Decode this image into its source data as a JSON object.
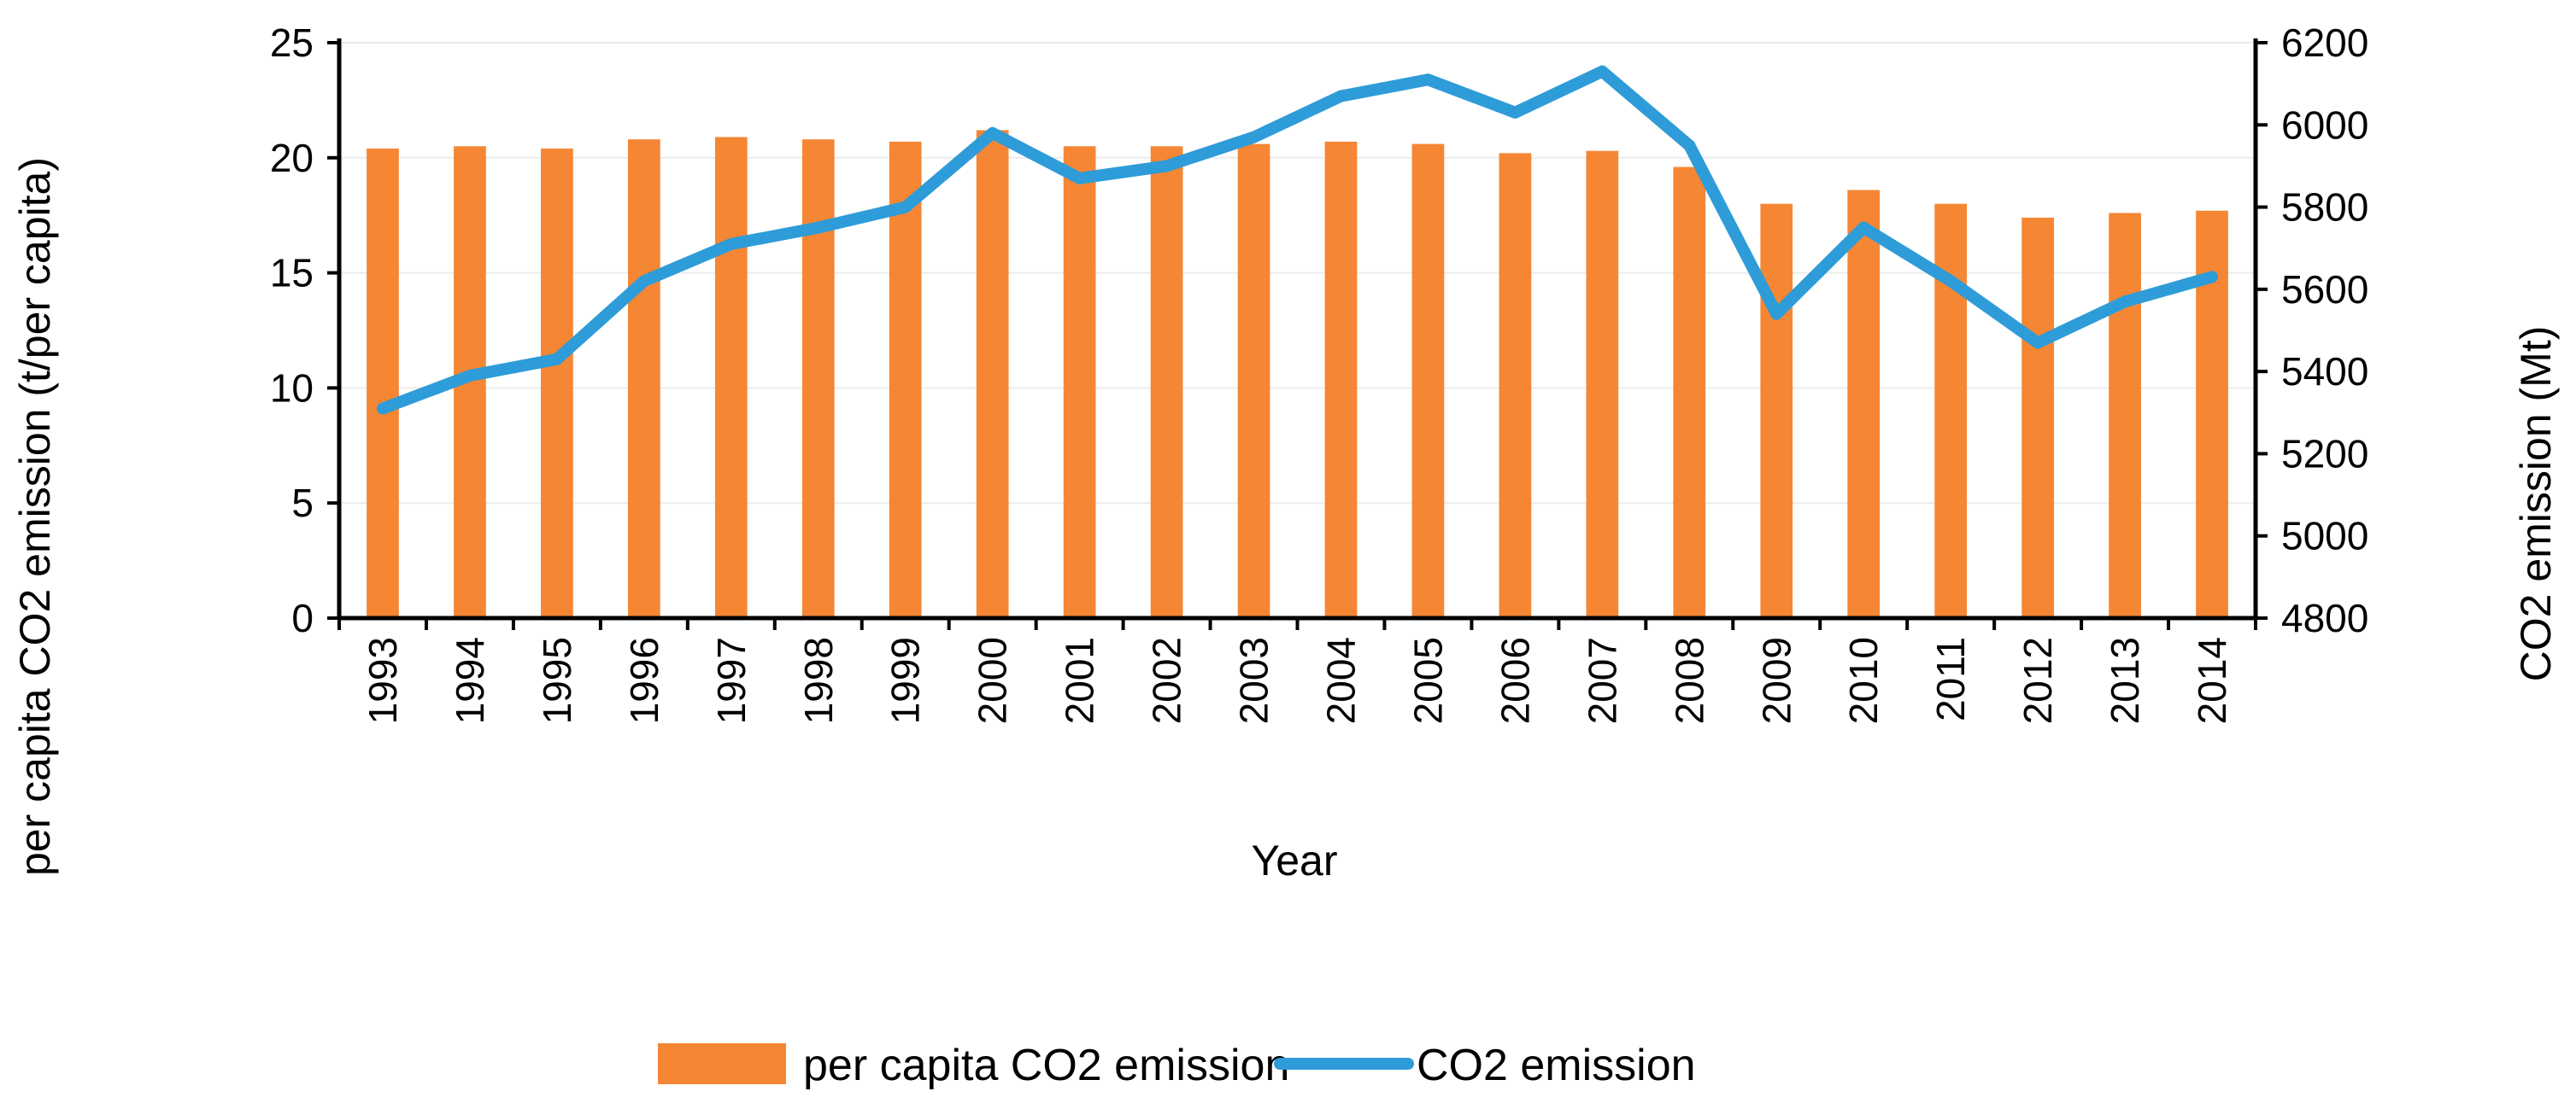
{
  "chart_data": {
    "type": "bar+line",
    "title": "",
    "xlabel": "Year",
    "ylabel_left": "per capita CO2 emission (t/per capita)",
    "ylabel_right": "CO2 emission (Mt)",
    "categories": [
      "1993",
      "1994",
      "1995",
      "1996",
      "1997",
      "1998",
      "1999",
      "2000",
      "2001",
      "2002",
      "2003",
      "2004",
      "2005",
      "2006",
      "2007",
      "2008",
      "2009",
      "2010",
      "2011",
      "2012",
      "2013",
      "2014"
    ],
    "series": [
      {
        "name": "per capita CO2 emission",
        "type": "bar",
        "axis": "left",
        "color": "#f58634",
        "values": [
          20.4,
          20.5,
          20.4,
          20.8,
          20.9,
          20.8,
          20.7,
          21.2,
          20.5,
          20.5,
          20.6,
          20.7,
          20.6,
          20.2,
          20.3,
          19.6,
          18.0,
          18.6,
          18.0,
          17.4,
          17.6,
          17.7
        ]
      },
      {
        "name": "CO2 emission",
        "type": "line",
        "axis": "right",
        "color": "#2e9cd8",
        "values": [
          5310,
          5390,
          5430,
          5620,
          5710,
          5750,
          5800,
          5980,
          5870,
          5900,
          5970,
          6070,
          6110,
          6030,
          6130,
          5950,
          5540,
          5750,
          5620,
          5470,
          5570,
          5630
        ]
      }
    ],
    "ylim_left": [
      0,
      25
    ],
    "yticks_left": [
      "0",
      "5",
      "10",
      "15",
      "20",
      "25"
    ],
    "ylim_right": [
      4800,
      6200
    ],
    "yticks_right": [
      "4800",
      "5000",
      "5200",
      "5400",
      "5600",
      "5800",
      "6000",
      "6200"
    ],
    "grid": true,
    "legend": {
      "position": "bottom",
      "items": [
        "per capita CO2 emission",
        "CO2 emission"
      ]
    }
  }
}
